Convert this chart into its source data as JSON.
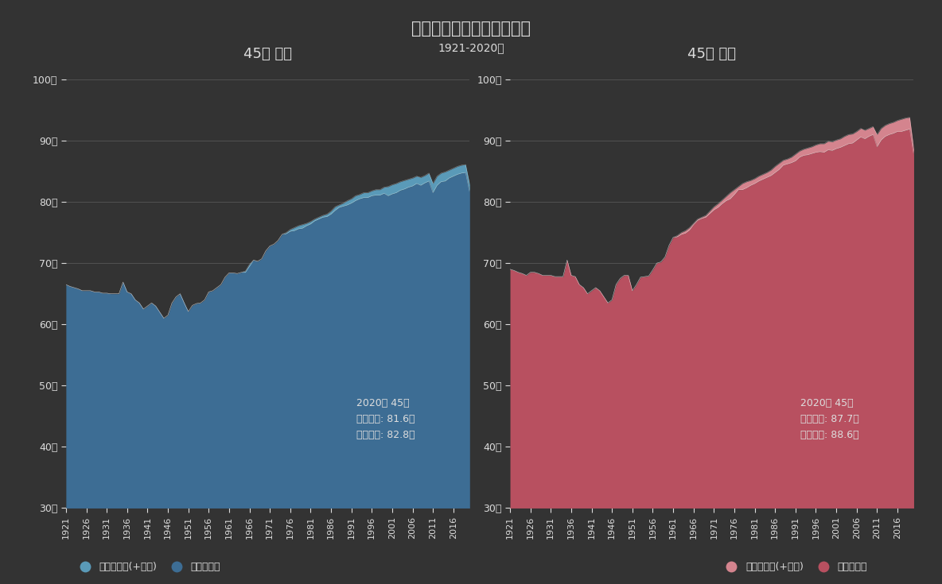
{
  "title": "平均对命と余命の年次推移",
  "subtitle": "1921-2020年",
  "left_subtitle": "45歳 男性",
  "right_subtitle": "45歳 女性",
  "bg_color": "#333333",
  "text_color": "#dddddd",
  "grid_color": "#666666",
  "male_life_color": "#3d6d94",
  "male_remaining_color": "#5a9ab8",
  "female_life_color": "#b85060",
  "female_remaining_color": "#d4848e",
  "ylim": [
    30,
    102
  ],
  "yticks": [
    30,
    40,
    50,
    60,
    70,
    80,
    90,
    100
  ],
  "years": [
    1921,
    1922,
    1923,
    1924,
    1925,
    1926,
    1927,
    1928,
    1929,
    1930,
    1931,
    1932,
    1933,
    1934,
    1935,
    1936,
    1937,
    1938,
    1939,
    1940,
    1941,
    1942,
    1943,
    1944,
    1945,
    1946,
    1947,
    1948,
    1949,
    1950,
    1951,
    1952,
    1953,
    1954,
    1955,
    1956,
    1957,
    1958,
    1959,
    1960,
    1961,
    1962,
    1963,
    1964,
    1965,
    1966,
    1967,
    1968,
    1969,
    1970,
    1971,
    1972,
    1973,
    1974,
    1975,
    1976,
    1977,
    1978,
    1979,
    1980,
    1981,
    1982,
    1983,
    1984,
    1985,
    1986,
    1987,
    1988,
    1989,
    1990,
    1991,
    1992,
    1993,
    1994,
    1995,
    1996,
    1997,
    1998,
    1999,
    2000,
    2001,
    2002,
    2003,
    2004,
    2005,
    2006,
    2007,
    2008,
    2009,
    2010,
    2011,
    2012,
    2013,
    2014,
    2015,
    2016,
    2017,
    2018,
    2019,
    2020
  ],
  "male_life": [
    66.5,
    66.2,
    66.0,
    65.8,
    65.5,
    65.5,
    65.5,
    65.3,
    65.3,
    65.1,
    65.1,
    65.0,
    65.0,
    65.0,
    66.9,
    65.3,
    65.0,
    64.0,
    63.5,
    62.5,
    63.0,
    63.5,
    63.0,
    62.0,
    61.0,
    61.5,
    63.5,
    64.5,
    65.0,
    63.5,
    62.1,
    63.1,
    63.4,
    63.5,
    64.0,
    65.3,
    65.5,
    66.0,
    66.5,
    67.7,
    68.4,
    68.4,
    68.3,
    68.5,
    68.7,
    69.8,
    70.5,
    70.3,
    70.7,
    72.0,
    72.8,
    73.1,
    73.7,
    74.7,
    74.8,
    75.2,
    75.3,
    75.6,
    75.7,
    76.1,
    76.4,
    76.9,
    77.2,
    77.5,
    77.6,
    78.0,
    78.6,
    79.1,
    79.3,
    79.5,
    79.8,
    80.2,
    80.5,
    80.7,
    80.7,
    81.0,
    81.1,
    81.1,
    81.4,
    81.0,
    81.3,
    81.5,
    81.9,
    82.1,
    82.4,
    82.6,
    83.0,
    82.7,
    83.1,
    83.4,
    81.5,
    82.7,
    83.3,
    83.4,
    83.9,
    84.2,
    84.5,
    84.7,
    84.8,
    81.6
  ],
  "male_remaining_total": [
    66.5,
    66.2,
    66.0,
    65.8,
    65.5,
    65.5,
    65.5,
    65.3,
    65.3,
    65.1,
    65.1,
    65.0,
    65.0,
    65.0,
    66.9,
    65.3,
    65.0,
    64.0,
    63.5,
    62.5,
    63.0,
    63.5,
    63.0,
    62.0,
    61.0,
    61.5,
    63.5,
    64.5,
    65.0,
    63.5,
    62.1,
    63.1,
    63.4,
    63.5,
    64.0,
    65.3,
    65.5,
    66.0,
    66.5,
    67.7,
    68.4,
    68.4,
    68.3,
    68.5,
    68.5,
    69.5,
    70.5,
    70.3,
    70.7,
    72.0,
    72.8,
    73.1,
    73.7,
    74.7,
    75.0,
    75.5,
    75.8,
    76.1,
    76.3,
    76.5,
    76.8,
    77.2,
    77.5,
    77.8,
    78.0,
    78.5,
    79.2,
    79.5,
    79.8,
    80.2,
    80.5,
    81.0,
    81.2,
    81.5,
    81.5,
    81.8,
    82.0,
    82.0,
    82.4,
    82.5,
    82.8,
    83.0,
    83.3,
    83.5,
    83.7,
    83.9,
    84.2,
    84.0,
    84.3,
    84.7,
    83.0,
    84.2,
    84.7,
    84.9,
    85.2,
    85.5,
    85.8,
    86.0,
    86.1,
    82.8
  ],
  "female_life": [
    69.0,
    68.8,
    68.5,
    68.3,
    68.0,
    68.5,
    68.5,
    68.3,
    68.0,
    68.0,
    68.0,
    67.8,
    67.8,
    67.8,
    70.5,
    68.0,
    67.8,
    66.5,
    66.0,
    65.0,
    65.5,
    66.0,
    65.5,
    64.5,
    63.5,
    64.0,
    66.5,
    67.5,
    68.0,
    68.0,
    65.5,
    66.5,
    67.7,
    67.8,
    67.9,
    68.9,
    70.0,
    70.2,
    71.0,
    72.9,
    74.2,
    74.3,
    74.7,
    74.9,
    75.4,
    76.3,
    77.0,
    77.3,
    77.5,
    78.1,
    78.7,
    79.1,
    79.7,
    80.2,
    80.5,
    81.2,
    82.0,
    82.0,
    82.3,
    82.7,
    83.0,
    83.4,
    83.7,
    84.0,
    84.3,
    84.8,
    85.3,
    86.0,
    86.2,
    86.4,
    86.7,
    87.3,
    87.6,
    87.7,
    87.9,
    88.1,
    88.2,
    88.1,
    88.5,
    88.4,
    88.7,
    88.9,
    89.2,
    89.5,
    89.6,
    90.1,
    90.6,
    90.3,
    90.7,
    91.0,
    89.0,
    90.1,
    90.7,
    91.0,
    91.2,
    91.5,
    91.5,
    91.7,
    91.9,
    87.7
  ],
  "female_remaining_total": [
    69.0,
    68.8,
    68.5,
    68.3,
    68.0,
    68.5,
    68.5,
    68.3,
    68.0,
    68.0,
    68.0,
    67.8,
    67.8,
    67.8,
    70.5,
    68.0,
    67.8,
    66.5,
    66.0,
    65.0,
    65.5,
    66.0,
    65.5,
    64.5,
    63.5,
    64.0,
    66.5,
    67.5,
    68.0,
    68.0,
    65.5,
    66.5,
    67.7,
    67.8,
    67.9,
    68.9,
    70.0,
    70.2,
    71.0,
    72.9,
    74.2,
    74.5,
    75.0,
    75.3,
    75.8,
    76.5,
    77.2,
    77.5,
    77.8,
    78.5,
    79.2,
    79.7,
    80.3,
    80.9,
    81.5,
    82.0,
    82.5,
    83.0,
    83.3,
    83.5,
    83.8,
    84.2,
    84.5,
    84.8,
    85.2,
    85.8,
    86.3,
    86.8,
    87.0,
    87.3,
    87.8,
    88.3,
    88.6,
    88.8,
    89.0,
    89.3,
    89.5,
    89.5,
    89.9,
    89.8,
    90.1,
    90.3,
    90.7,
    91.0,
    91.1,
    91.5,
    92.0,
    91.7,
    92.0,
    92.3,
    91.0,
    92.0,
    92.5,
    92.8,
    93.0,
    93.3,
    93.5,
    93.7,
    93.8,
    88.6
  ],
  "annotation_male": "2020年 45歳\n平均对命: 81.6歳\n平均余命: 82.8歳",
  "annotation_female": "2020年 45歳\n平均对命: 87.7歳\n平均余命: 88.6歳",
  "legend_male_remaining": "男性の余命(+年齢)",
  "legend_male_life": "男性の对命",
  "legend_female_remaining": "女性の余命(+年齢)",
  "legend_female_life": "女性の对命",
  "base_age": 30
}
